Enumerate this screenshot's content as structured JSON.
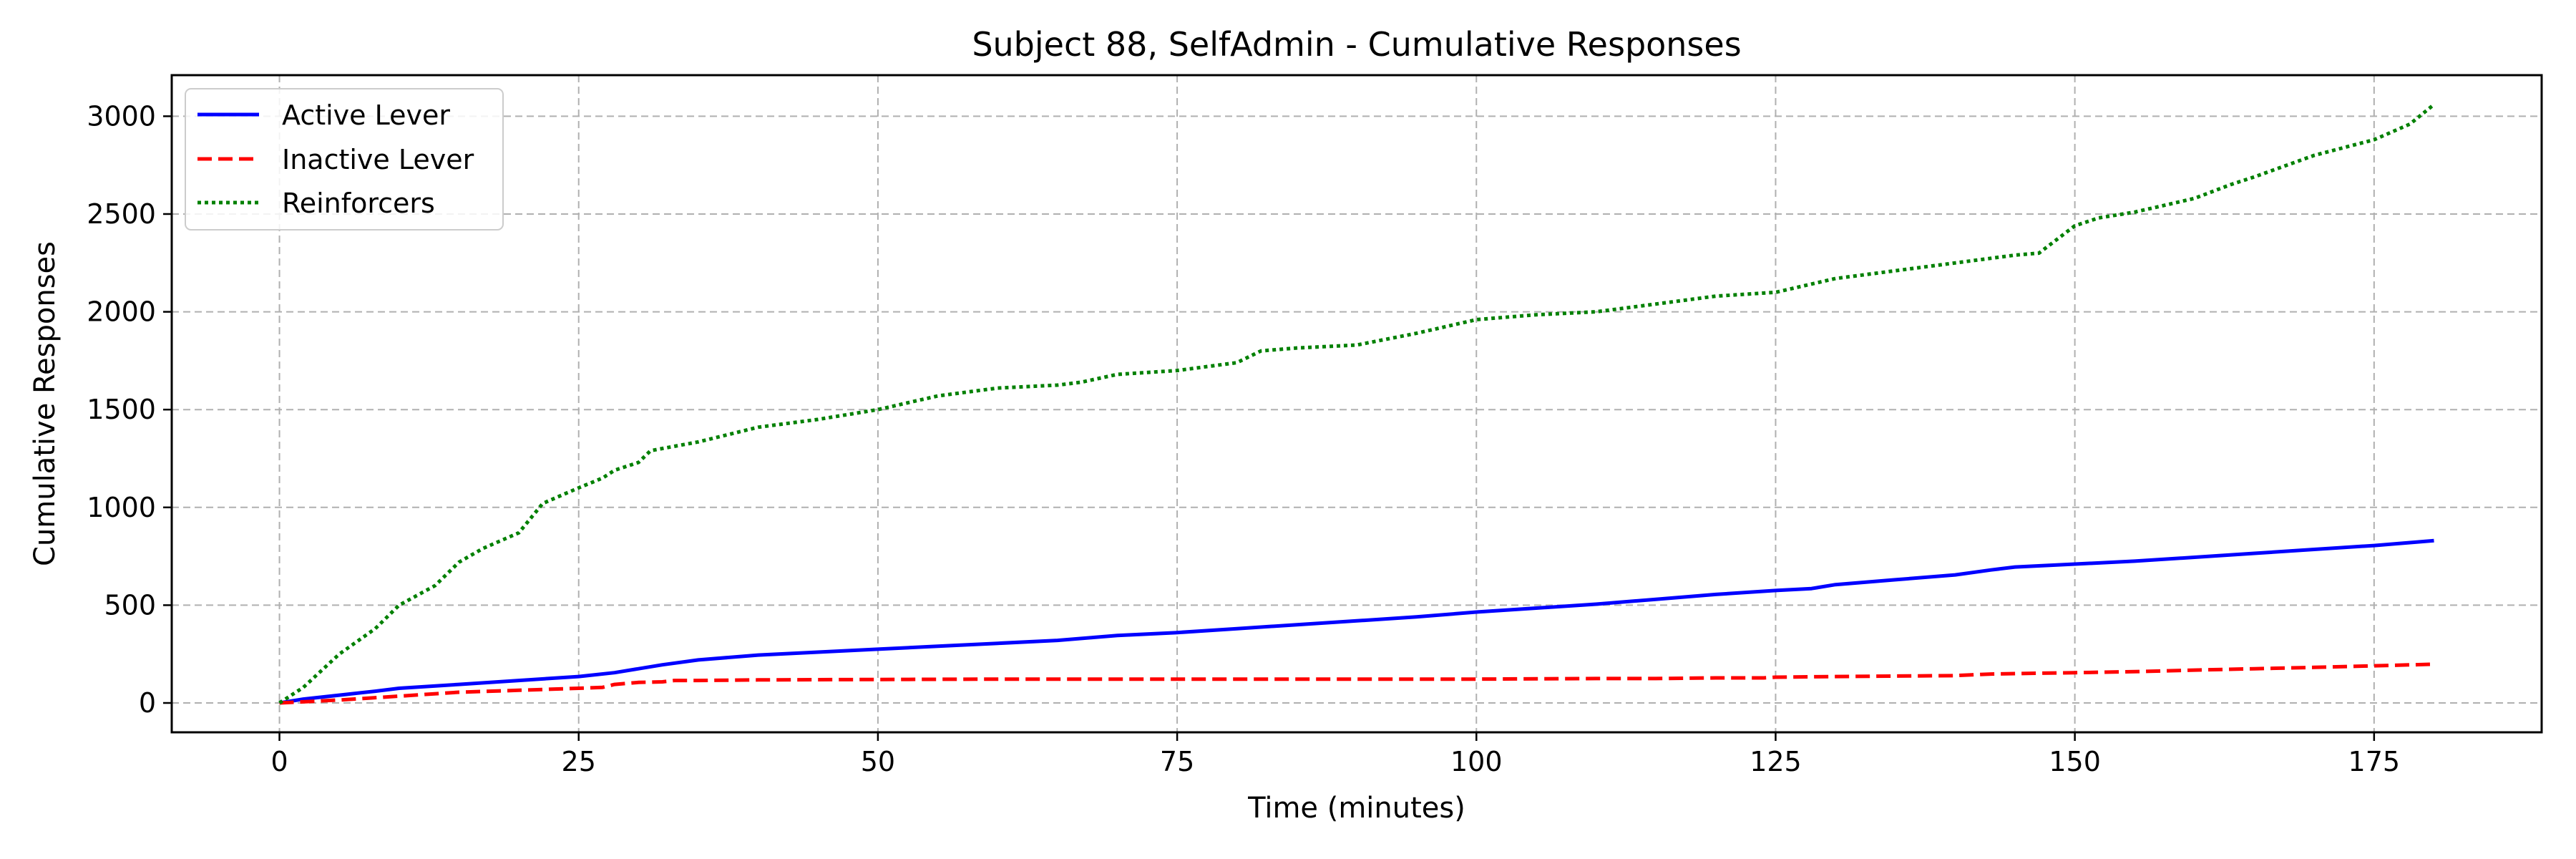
{
  "chart_data": {
    "type": "line",
    "title": "Subject 88, SelfAdmin - Cumulative Responses",
    "xlabel": "Time (minutes)",
    "ylabel": "Cumulative Responses",
    "xlim": [
      -9,
      189
    ],
    "ylim": [
      -150,
      3210
    ],
    "xticks": [
      0,
      25,
      50,
      75,
      100,
      125,
      150,
      175
    ],
    "yticks": [
      0,
      500,
      1000,
      1500,
      2000,
      2500,
      3000
    ],
    "grid": true,
    "legend_position": "top-left",
    "series": [
      {
        "name": "Active Lever",
        "color": "#0000ff",
        "dash": "solid",
        "x": [
          0,
          2,
          5,
          8,
          10,
          15,
          20,
          25,
          28,
          30,
          32,
          35,
          40,
          45,
          50,
          55,
          60,
          65,
          68,
          70,
          75,
          80,
          85,
          90,
          95,
          100,
          105,
          110,
          115,
          120,
          125,
          128,
          130,
          135,
          140,
          143,
          145,
          150,
          155,
          160,
          165,
          170,
          175,
          178,
          180
        ],
        "y": [
          0,
          20,
          40,
          60,
          75,
          95,
          115,
          135,
          155,
          175,
          195,
          220,
          245,
          260,
          275,
          290,
          305,
          320,
          335,
          345,
          360,
          380,
          400,
          420,
          440,
          465,
          485,
          505,
          530,
          555,
          575,
          585,
          605,
          630,
          655,
          680,
          695,
          710,
          725,
          745,
          765,
          785,
          805,
          820,
          830
        ]
      },
      {
        "name": "Inactive Lever",
        "color": "#ff0000",
        "dash": "dashed",
        "x": [
          0,
          5,
          10,
          15,
          20,
          25,
          27,
          28,
          30,
          32,
          33,
          35,
          40,
          50,
          60,
          70,
          80,
          90,
          100,
          110,
          115,
          120,
          124,
          125,
          130,
          140,
          143,
          145,
          150,
          155,
          160,
          165,
          170,
          175,
          180
        ],
        "y": [
          0,
          15,
          35,
          55,
          65,
          75,
          80,
          95,
          105,
          108,
          115,
          115,
          118,
          120,
          122,
          122,
          122,
          122,
          122,
          125,
          125,
          128,
          128,
          132,
          135,
          140,
          148,
          150,
          155,
          160,
          168,
          175,
          182,
          190,
          198
        ]
      },
      {
        "name": "Reinforcers",
        "color": "#008000",
        "dash": "dotted",
        "x": [
          0,
          2,
          5,
          8,
          10,
          13,
          15,
          17,
          20,
          22,
          25,
          27,
          28,
          30,
          31,
          35,
          40,
          45,
          50,
          55,
          60,
          65,
          67,
          70,
          75,
          80,
          82,
          85,
          90,
          95,
          100,
          105,
          110,
          115,
          120,
          125,
          130,
          135,
          140,
          145,
          147,
          150,
          152,
          155,
          160,
          163,
          165,
          170,
          175,
          178,
          180
        ],
        "y": [
          0,
          80,
          250,
          380,
          500,
          600,
          720,
          790,
          870,
          1020,
          1100,
          1150,
          1190,
          1230,
          1290,
          1335,
          1410,
          1450,
          1500,
          1570,
          1610,
          1625,
          1640,
          1680,
          1700,
          1740,
          1800,
          1815,
          1830,
          1890,
          1960,
          1985,
          2000,
          2040,
          2080,
          2100,
          2170,
          2210,
          2250,
          2290,
          2300,
          2440,
          2480,
          2510,
          2580,
          2650,
          2690,
          2800,
          2880,
          2960,
          3060
        ]
      }
    ]
  }
}
